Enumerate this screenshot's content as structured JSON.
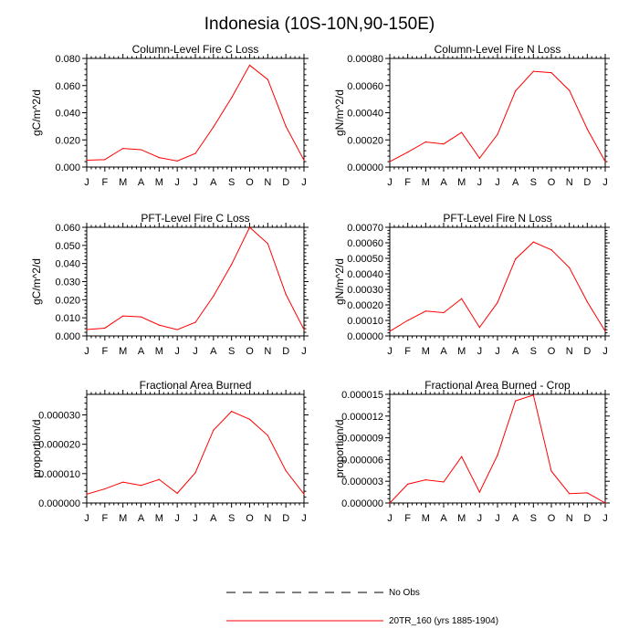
{
  "figure": {
    "title": "Indonesia (10S-10N,90-150E)"
  },
  "legend": {
    "items": [
      {
        "label": "No Obs",
        "style": "dashed",
        "color": "#000000"
      },
      {
        "label": "20TR_160 (yrs 1885-1904)",
        "style": "solid",
        "color": "#ff0000"
      }
    ]
  },
  "chart_data": [
    {
      "type": "line",
      "title": "Column-Level Fire C Loss",
      "xlabel": "",
      "ylabel": "gC/m^2/d",
      "categories": [
        "J",
        "F",
        "M",
        "A",
        "M",
        "J",
        "J",
        "A",
        "S",
        "O",
        "N",
        "D",
        "J"
      ],
      "ylim": [
        0,
        0.08
      ],
      "yticks": [
        "0.000",
        "0.020",
        "0.040",
        "0.060",
        "0.080"
      ],
      "series": [
        {
          "name": "20TR_160 (yrs 1885-1904)",
          "color": "#ff0000",
          "values": [
            0.005,
            0.0055,
            0.0137,
            0.0128,
            0.007,
            0.0045,
            0.01,
            0.0295,
            0.051,
            0.075,
            0.0645,
            0.03,
            0.005
          ]
        }
      ]
    },
    {
      "type": "line",
      "title": "Column-Level Fire N Loss",
      "xlabel": "",
      "ylabel": "gN/m^2/d",
      "categories": [
        "J",
        "F",
        "M",
        "A",
        "M",
        "J",
        "J",
        "A",
        "S",
        "O",
        "N",
        "D",
        "J"
      ],
      "ylim": [
        0,
        0.0008
      ],
      "yticks": [
        "0.00000",
        "0.00020",
        "0.00040",
        "0.00060",
        "0.00080"
      ],
      "series": [
        {
          "name": "20TR_160 (yrs 1885-1904)",
          "color": "#ff0000",
          "values": [
            4e-05,
            0.00011,
            0.000185,
            0.00017,
            0.000255,
            6.5e-05,
            0.00024,
            0.00056,
            0.000705,
            0.000695,
            0.000565,
            0.00028,
            4e-05
          ]
        }
      ]
    },
    {
      "type": "line",
      "title": "PFT-Level Fire C Loss",
      "xlabel": "",
      "ylabel": "gC/m^2/d",
      "categories": [
        "J",
        "F",
        "M",
        "A",
        "M",
        "J",
        "J",
        "A",
        "S",
        "O",
        "N",
        "D",
        "J"
      ],
      "ylim": [
        0,
        0.06
      ],
      "yticks": [
        "0.000",
        "0.010",
        "0.020",
        "0.030",
        "0.040",
        "0.050",
        "0.060"
      ],
      "series": [
        {
          "name": "20TR_160 (yrs 1885-1904)",
          "color": "#ff0000",
          "values": [
            0.0035,
            0.0043,
            0.011,
            0.0105,
            0.006,
            0.0035,
            0.0075,
            0.022,
            0.0395,
            0.06,
            0.051,
            0.023,
            0.0035
          ]
        }
      ]
    },
    {
      "type": "line",
      "title": "PFT-Level Fire N Loss",
      "xlabel": "",
      "ylabel": "gN/m^2/d",
      "categories": [
        "J",
        "F",
        "M",
        "A",
        "M",
        "J",
        "J",
        "A",
        "S",
        "O",
        "N",
        "D",
        "J"
      ],
      "ylim": [
        0,
        0.0007
      ],
      "yticks": [
        "0.00000",
        "0.00010",
        "0.00020",
        "0.00030",
        "0.00040",
        "0.00050",
        "0.00060",
        "0.00070"
      ],
      "series": [
        {
          "name": "20TR_160 (yrs 1885-1904)",
          "color": "#ff0000",
          "values": [
            3e-05,
            0.0001,
            0.00016,
            0.00015,
            0.00024,
            5.5e-05,
            0.000215,
            0.000495,
            0.000605,
            0.000555,
            0.00044,
            0.00022,
            3e-05
          ]
        }
      ]
    },
    {
      "type": "line",
      "title": "Fractional Area Burned",
      "xlabel": "",
      "ylabel": "proportion/d",
      "categories": [
        "J",
        "F",
        "M",
        "A",
        "M",
        "J",
        "J",
        "A",
        "S",
        "O",
        "N",
        "D",
        "J"
      ],
      "ylim": [
        0,
        3.7e-05
      ],
      "ytick_values": [
        0,
        1e-05,
        2e-05,
        3e-05
      ],
      "yticks": [
        "0.000000",
        "0.000010",
        "0.000020",
        "0.000030"
      ],
      "series": [
        {
          "name": "20TR_160 (yrs 1885-1904)",
          "color": "#ff0000",
          "values": [
            3e-06,
            4.8e-06,
            7.1e-06,
            6e-06,
            8e-06,
            3.3e-06,
            1.03e-05,
            2.48e-05,
            3.12e-05,
            2.85e-05,
            2.3e-05,
            1.1e-05,
            3e-06
          ]
        }
      ]
    },
    {
      "type": "line",
      "title": "Fractional Area Burned - Crop",
      "xlabel": "",
      "ylabel": "proportion/d",
      "categories": [
        "J",
        "F",
        "M",
        "A",
        "M",
        "J",
        "J",
        "A",
        "S",
        "O",
        "N",
        "D",
        "J"
      ],
      "ylim": [
        0,
        1.5e-05
      ],
      "yticks": [
        "0.000000",
        "0.000003",
        "0.000006",
        "0.000009",
        "0.000012",
        "0.000015"
      ],
      "series": [
        {
          "name": "20TR_160 (yrs 1885-1904)",
          "color": "#ff0000",
          "values": [
            0.0,
            2.6e-06,
            3.2e-06,
            2.9e-06,
            6.4e-06,
            1.5e-06,
            6.6e-06,
            1.41e-05,
            1.49e-05,
            4.4e-06,
            1.3e-06,
            1.4e-06,
            0.0
          ]
        }
      ]
    }
  ]
}
